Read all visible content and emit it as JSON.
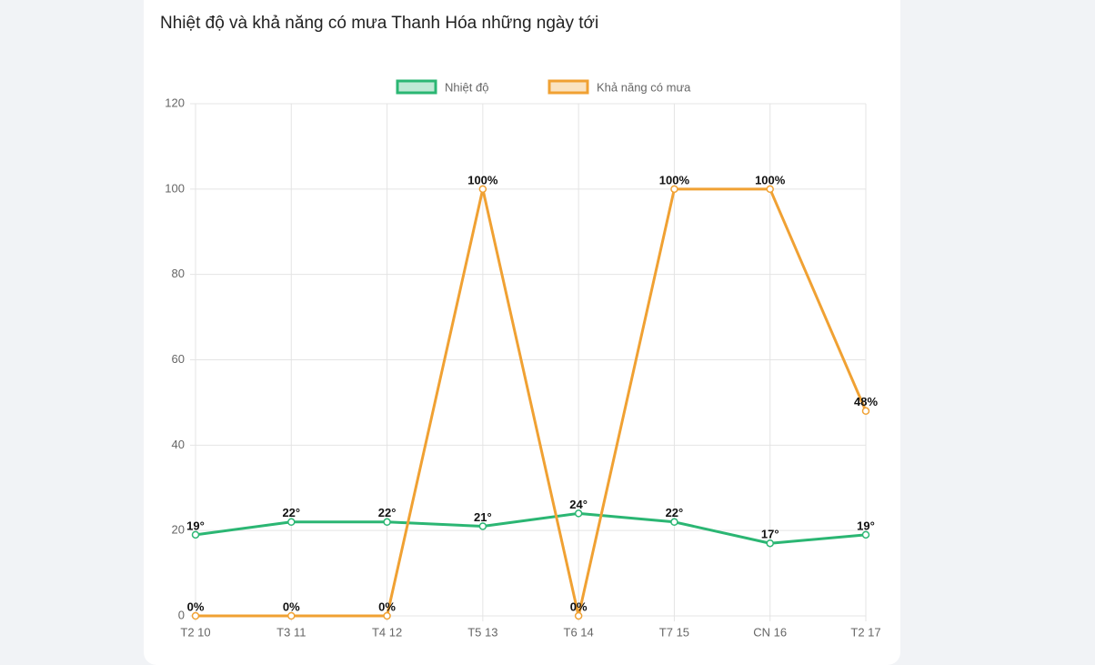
{
  "chart_data": {
    "type": "line",
    "title": "Nhiệt độ và khả năng có mưa Thanh Hóa những ngày tới",
    "categories": [
      "T2 10",
      "T3 11",
      "T4 12",
      "T5 13",
      "T6 14",
      "T7 15",
      "CN 16",
      "T2 17"
    ],
    "series": [
      {
        "name": "Nhiệt độ",
        "color": "#2bb673",
        "values": [
          19,
          22,
          22,
          21,
          24,
          22,
          17,
          19
        ],
        "value_labels": [
          "19°",
          "22°",
          "22°",
          "21°",
          "24°",
          "22°",
          "17°",
          "19°"
        ]
      },
      {
        "name": "Khả năng có mưa",
        "color": "#f0a133",
        "values": [
          0,
          0,
          0,
          100,
          0,
          100,
          100,
          48
        ],
        "value_labels": [
          "0%",
          "0%",
          "0%",
          "100%",
          "0%",
          "100%",
          "100%",
          "48%"
        ]
      }
    ],
    "ylim": [
      0,
      120
    ],
    "yticks": [
      0,
      20,
      40,
      60,
      80,
      100,
      120
    ],
    "grid": true,
    "legend": "top"
  }
}
